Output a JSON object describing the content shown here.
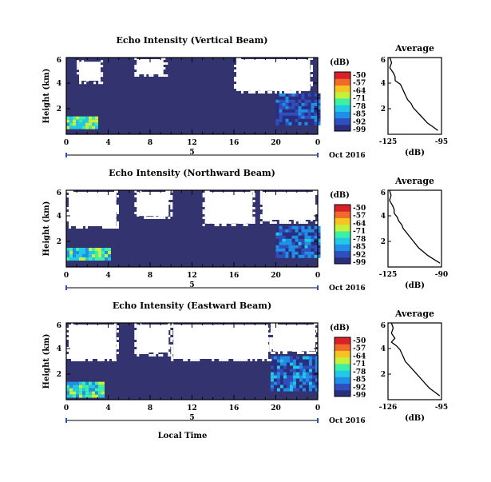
{
  "figure": {
    "x_axis_label": "Local Time",
    "date_label": "Oct 2016",
    "colorbar_unit": "(dB)",
    "colorbar_ticks": [
      "-50",
      "-57",
      "-64",
      "-71",
      "-78",
      "-85",
      "-92",
      "-99"
    ],
    "colormap": [
      "#2b2e7d",
      "#2f4fbf",
      "#1f8fe8",
      "#22c9e6",
      "#3df0a6",
      "#c6f03c",
      "#f5c423",
      "#f06a2a",
      "#d91f2a"
    ],
    "background_fill": "#33346f",
    "no_data_fill": "#ffffff"
  },
  "chart_data": [
    {
      "type": "heatmap",
      "title": "Echo Intensity (Vertical Beam)",
      "ylabel": "Height (km)",
      "xlabel": "",
      "x_ticks": [
        "0",
        "4",
        "8",
        "12",
        "16",
        "20",
        "0"
      ],
      "x_sub_tick": "5",
      "y_ticks": [
        "6",
        "4",
        "2"
      ],
      "xlim": [
        0,
        24
      ],
      "ylim": [
        0,
        6
      ],
      "zlim": [
        -99,
        -50
      ],
      "no_data_regions": [
        {
          "x": [
            1.0,
            3.5
          ],
          "y": [
            4.0,
            5.8
          ]
        },
        {
          "x": [
            6.5,
            9.5
          ],
          "y": [
            4.5,
            6.0
          ]
        },
        {
          "x": [
            16.0,
            23.5
          ],
          "y": [
            3.2,
            6.0
          ]
        }
      ],
      "strong_echo_regions": [
        {
          "x": [
            0.0,
            3.0
          ],
          "y": [
            0.4,
            1.4
          ],
          "value": -75
        },
        {
          "x": [
            20.0,
            24.0
          ],
          "y": [
            0.8,
            3.2
          ],
          "value": -92
        }
      ],
      "profile": {
        "title": "Average",
        "xlabel": "(dB)",
        "x_ticks": [
          "-125",
          "-95"
        ],
        "xlim": [
          -125,
          -95
        ],
        "heights": [
          0.3,
          0.6,
          0.9,
          1.2,
          1.5,
          1.8,
          2.1,
          2.4,
          2.7,
          3.0,
          3.3,
          3.6,
          3.9,
          4.2,
          4.5,
          4.8,
          5.2,
          5.6,
          6.0
        ],
        "values": [
          -97,
          -100,
          -103,
          -105,
          -107,
          -109,
          -111,
          -112,
          -114,
          -115,
          -116,
          -117,
          -118,
          -121,
          -121,
          -122,
          -124,
          -123,
          -124
        ]
      }
    },
    {
      "type": "heatmap",
      "title": "Echo Intensity (Northward Beam)",
      "ylabel": "Height (km)",
      "xlabel": "",
      "x_ticks": [
        "0",
        "4",
        "8",
        "12",
        "16",
        "20",
        "0"
      ],
      "x_sub_tick": "5",
      "y_ticks": [
        "6",
        "4",
        "2"
      ],
      "xlim": [
        0,
        24
      ],
      "ylim": [
        0,
        6
      ],
      "zlim": [
        -99,
        -50
      ],
      "no_data_regions": [
        {
          "x": [
            0.0,
            5.0
          ],
          "y": [
            3.0,
            6.0
          ]
        },
        {
          "x": [
            6.5,
            10.0
          ],
          "y": [
            3.8,
            6.0
          ]
        },
        {
          "x": [
            13.0,
            18.0
          ],
          "y": [
            3.2,
            6.0
          ]
        },
        {
          "x": [
            18.5,
            24.0
          ],
          "y": [
            3.5,
            6.0
          ]
        }
      ],
      "strong_echo_regions": [
        {
          "x": [
            0.0,
            4.0
          ],
          "y": [
            0.5,
            1.5
          ],
          "value": -76
        },
        {
          "x": [
            20.0,
            24.0
          ],
          "y": [
            0.8,
            3.2
          ],
          "value": -90
        }
      ],
      "profile": {
        "title": "Average",
        "xlabel": "(dB)",
        "x_ticks": [
          "-125",
          "-90"
        ],
        "xlim": [
          -125,
          -90
        ],
        "heights": [
          0.3,
          0.6,
          0.9,
          1.2,
          1.5,
          1.8,
          2.1,
          2.4,
          2.7,
          3.0,
          3.3,
          3.6,
          3.9,
          4.2,
          4.5,
          4.8,
          5.2,
          5.6,
          6.0
        ],
        "values": [
          -91,
          -95,
          -99,
          -102,
          -105,
          -107,
          -109,
          -111,
          -113,
          -115,
          -116,
          -118,
          -119,
          -121,
          -121,
          -122,
          -124,
          -123,
          -124
        ]
      }
    },
    {
      "type": "heatmap",
      "title": "Echo Intensity (Eastward Beam)",
      "ylabel": "Height (km)",
      "xlabel": "Local Time",
      "x_ticks": [
        "0",
        "4",
        "8",
        "12",
        "16",
        "20",
        "0"
      ],
      "x_sub_tick": "5",
      "y_ticks": [
        "6",
        "4",
        "2"
      ],
      "xlim": [
        0,
        24
      ],
      "ylim": [
        0,
        6
      ],
      "zlim": [
        -99,
        -50
      ],
      "no_data_regions": [
        {
          "x": [
            0.0,
            5.0
          ],
          "y": [
            3.0,
            6.0
          ]
        },
        {
          "x": [
            6.5,
            10.0
          ],
          "y": [
            3.5,
            6.0
          ]
        },
        {
          "x": [
            10.0,
            19.5
          ],
          "y": [
            3.0,
            6.0
          ]
        },
        {
          "x": [
            19.5,
            24.0
          ],
          "y": [
            3.6,
            6.0
          ]
        }
      ],
      "strong_echo_regions": [
        {
          "x": [
            0.0,
            3.5
          ],
          "y": [
            0.3,
            1.4
          ],
          "value": -76
        },
        {
          "x": [
            19.5,
            24.0
          ],
          "y": [
            0.8,
            3.4
          ],
          "value": -88
        }
      ],
      "profile": {
        "title": "Average",
        "xlabel": "(dB)",
        "x_ticks": [
          "-126",
          "-95"
        ],
        "xlim": [
          -126,
          -95
        ],
        "heights": [
          0.3,
          0.6,
          0.9,
          1.2,
          1.5,
          1.8,
          2.1,
          2.4,
          2.7,
          3.0,
          3.3,
          3.6,
          3.9,
          4.2,
          4.5,
          4.8,
          5.2,
          5.6,
          6.0
        ],
        "values": [
          -96,
          -99,
          -102,
          -104,
          -106,
          -108,
          -110,
          -112,
          -114,
          -116,
          -117,
          -118,
          -119,
          -121,
          -124,
          -122,
          -124,
          -123,
          -124
        ]
      }
    }
  ]
}
